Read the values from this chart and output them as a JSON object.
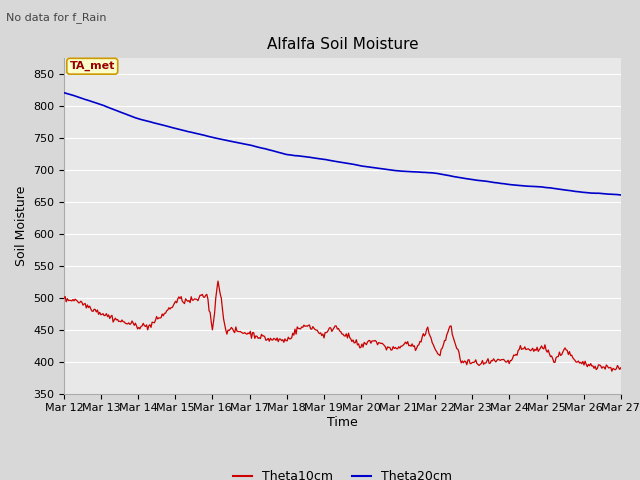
{
  "title": "Alfalfa Soil Moisture",
  "subtitle": "No data for f_Rain",
  "xlabel": "Time",
  "ylabel": "Soil Moisture",
  "ylim": [
    350,
    875
  ],
  "yticks": [
    350,
    400,
    450,
    500,
    550,
    600,
    650,
    700,
    750,
    800,
    850
  ],
  "background_color": "#d8d8d8",
  "plot_bg_color": "#e8e8e8",
  "line1_color": "#cc0000",
  "line2_color": "#0000cc",
  "legend_label1": "Theta10cm",
  "legend_label2": "Theta20cm",
  "annotation_text": "TA_met",
  "annotation_bg": "#ffffcc",
  "annotation_border": "#cc9900",
  "annotation_text_color": "#990000",
  "n_points": 500,
  "x_start_day": 12,
  "x_end_day": 27,
  "xtick_days": [
    12,
    13,
    14,
    15,
    16,
    17,
    18,
    19,
    20,
    21,
    22,
    23,
    24,
    25,
    26,
    27
  ],
  "title_fontsize": 11,
  "label_fontsize": 9,
  "tick_fontsize": 8,
  "legend_fontsize": 9
}
